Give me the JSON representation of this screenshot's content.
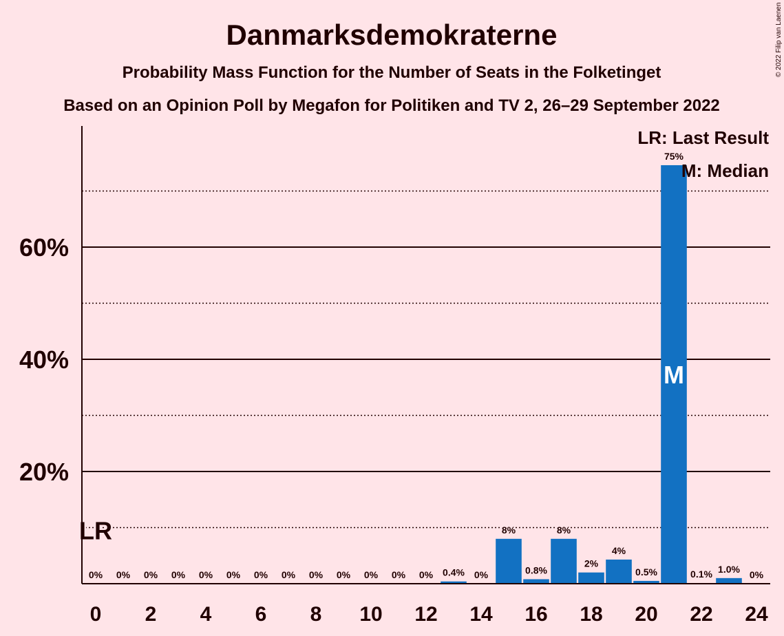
{
  "header": {
    "title": "Danmarksdemokraterne",
    "subtitle1": "Probability Mass Function for the Number of Seats in the Folketinget",
    "subtitle2": "Based on an Opinion Poll by Megafon for Politiken and TV 2, 26–29 September 2022"
  },
  "copyright": "© 2022 Filip van Laenen",
  "legend": {
    "lr": "LR: Last Result",
    "median": "M: Median"
  },
  "colors": {
    "background": "#FFE4E8",
    "bar": "#1271C2",
    "text": "#200000"
  },
  "chart_data": {
    "type": "bar",
    "x": [
      0,
      1,
      2,
      3,
      4,
      5,
      6,
      7,
      8,
      9,
      10,
      11,
      12,
      13,
      14,
      15,
      16,
      17,
      18,
      19,
      20,
      21,
      22,
      23,
      24
    ],
    "values": [
      0,
      0,
      0,
      0,
      0,
      0,
      0,
      0,
      0,
      0,
      0,
      0,
      0,
      0.4,
      0,
      8.0,
      0.8,
      8.0,
      2.0,
      4.3,
      0.5,
      74.6,
      0.1,
      1.0,
      0
    ],
    "data_labels": [
      "0%",
      "0%",
      "0%",
      "0%",
      "0%",
      "0%",
      "0%",
      "0%",
      "0%",
      "0%",
      "0%",
      "0%",
      "0%",
      "0.4%",
      "0%",
      "8%",
      "0.8%",
      "8%",
      "2%",
      "4%",
      "0.5%",
      "75%",
      "0.1%",
      "1.0%",
      "0%"
    ],
    "x_tick_labels": [
      "0",
      "2",
      "4",
      "6",
      "8",
      "10",
      "12",
      "14",
      "16",
      "18",
      "20",
      "22",
      "24"
    ],
    "y_tick_labels": [
      "20%",
      "40%",
      "60%"
    ],
    "ylim": [
      0,
      80
    ],
    "last_result_seat": 0,
    "last_result_label": "LR",
    "median_seat": 21,
    "median_label": "M"
  }
}
